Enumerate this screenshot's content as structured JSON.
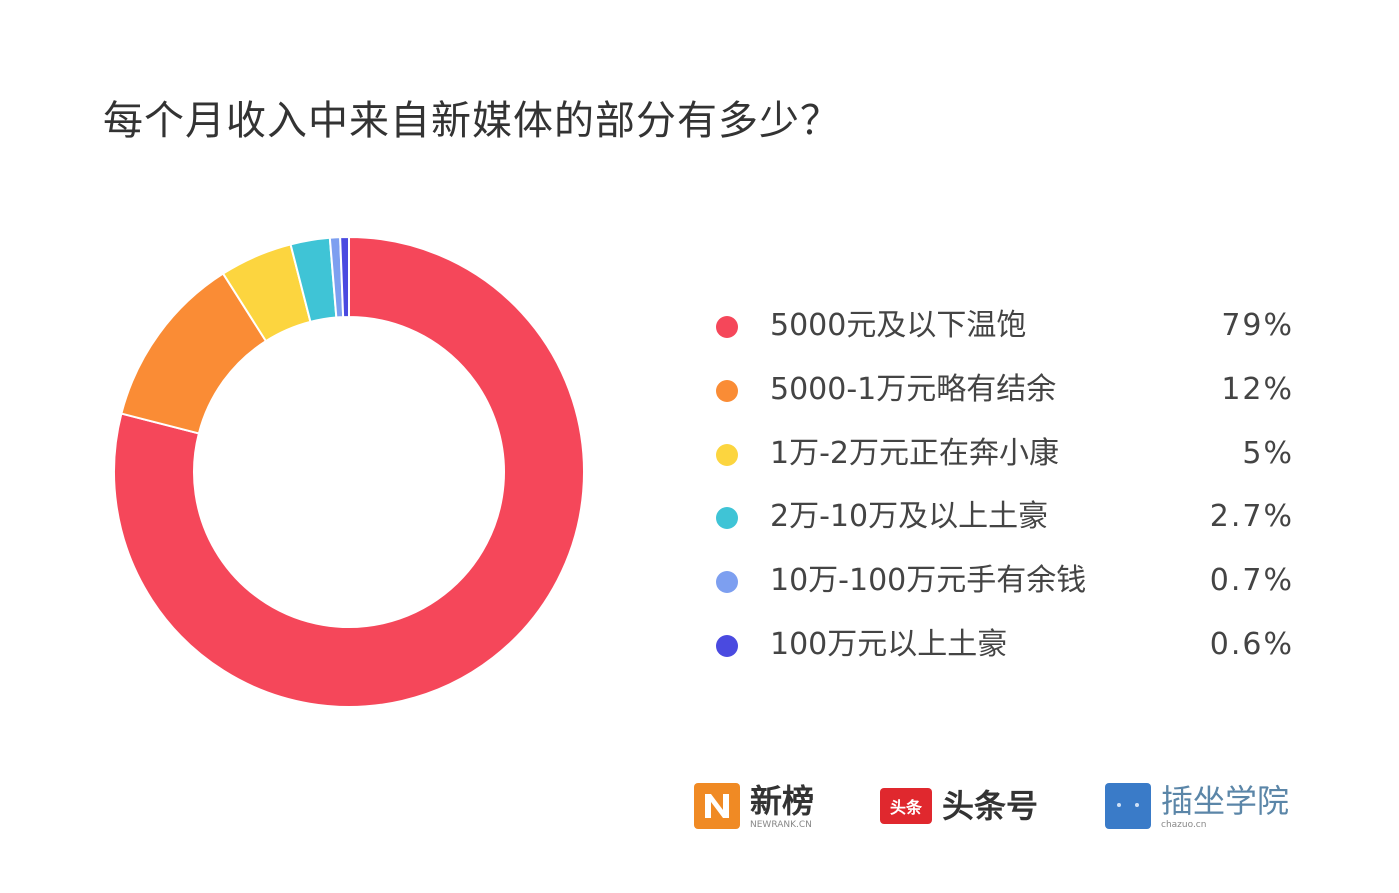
{
  "chart_data": {
    "type": "pie",
    "variant": "donut",
    "title": "每个月收入中来自新媒体的部分有多少？",
    "legend_position": "right",
    "slices": [
      {
        "label": "5000元及以下温饱",
        "value": 79,
        "value_label": "79%",
        "color": "#f5475a"
      },
      {
        "label": "5000-1万元略有结余",
        "value": 12,
        "value_label": "12%",
        "color": "#fa8c35"
      },
      {
        "label": "1万-2万元正在奔小康",
        "value": 5,
        "value_label": "5%",
        "color": "#fcd53f"
      },
      {
        "label": "2万-10万及以上土豪",
        "value": 2.7,
        "value_label": "2.7%",
        "color": "#3fc4d6"
      },
      {
        "label": "10万-100万元手有余钱",
        "value": 0.7,
        "value_label": "0.7%",
        "color": "#7d9ff0"
      },
      {
        "label": "100万元以上土豪",
        "value": 0.6,
        "value_label": "0.6%",
        "color": "#4a4ae0"
      }
    ]
  },
  "logos": {
    "newrank": {
      "name": "新榜",
      "sub": "NEWRANK.CN",
      "color": "#f08a24"
    },
    "toutiao": {
      "name": "头条号",
      "mark": "头条",
      "color": "#e0282e"
    },
    "chazuo": {
      "name": "插坐学院",
      "sub": "chazuo.cn",
      "color": "#3a7bc8"
    }
  }
}
